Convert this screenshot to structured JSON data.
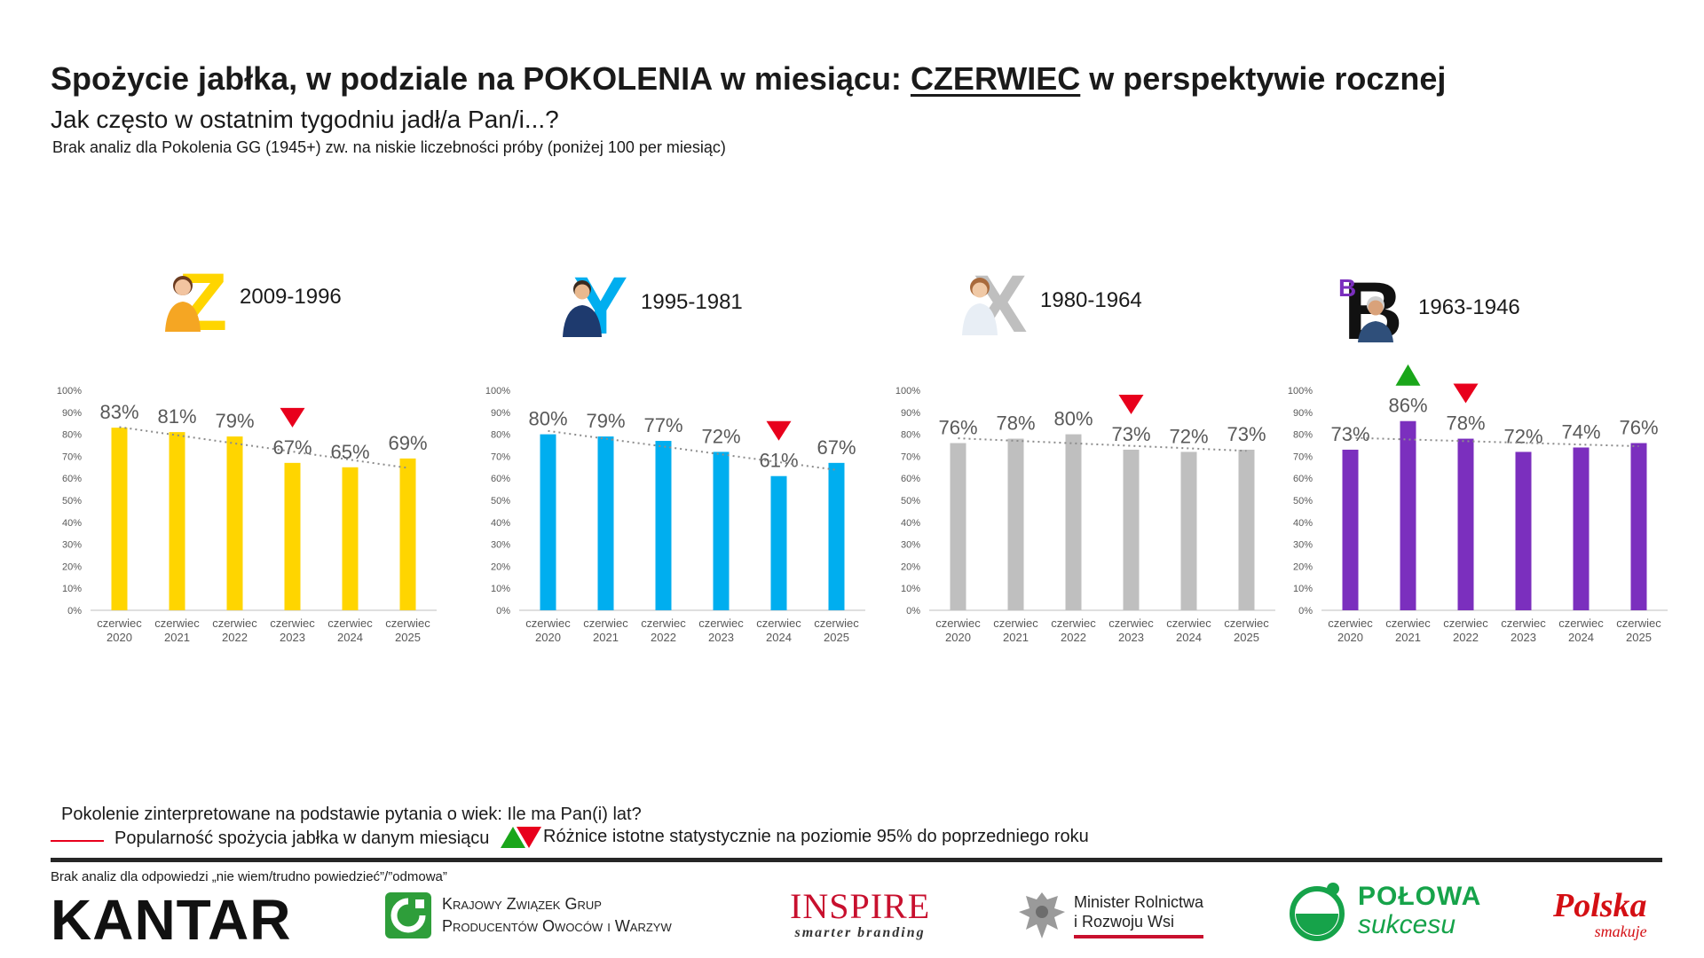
{
  "title": {
    "part1": "Spożycie jabłka, w podziale na POKOLENIA w miesiącu: ",
    "highlight": "CZERWIEC",
    "part2": " w perspektywie rocznej"
  },
  "subtitle": "Jak często w ostatnim tygodniu jadł/a Pan/i...?",
  "note_top": "Brak analiz dla Pokolenia GG (1945+) zw. na niskie liczebności próby (poniżej 100 per miesiąc)",
  "generations": [
    {
      "letter": "Z",
      "label": "2009-1996",
      "letter_color": "#FFD500"
    },
    {
      "letter": "Y",
      "label": "1995-1981",
      "letter_color": "#00AEEF"
    },
    {
      "letter": "X",
      "label": "1980-1964",
      "letter_color": "#BFBFBF"
    },
    {
      "letter": "B",
      "label": "1963-1946",
      "letter_color": "#7B2FBE"
    }
  ],
  "chart_data": [
    {
      "type": "bar",
      "categories": [
        [
          "czerwiec",
          "2020"
        ],
        [
          "czerwiec",
          "2021"
        ],
        [
          "czerwiec",
          "2022"
        ],
        [
          "czerwiec",
          "2023"
        ],
        [
          "czerwiec",
          "2024"
        ],
        [
          "czerwiec",
          "2025"
        ]
      ],
      "values": [
        83,
        81,
        79,
        67,
        65,
        69
      ],
      "labels": [
        "83%",
        "81%",
        "79%",
        "67%",
        "65%",
        "69%"
      ],
      "yticks": [
        "0%",
        "10%",
        "20%",
        "30%",
        "40%",
        "50%",
        "60%",
        "70%",
        "80%",
        "90%",
        "100%"
      ],
      "ylim": [
        0,
        100
      ],
      "color": "#FFD500",
      "trendline": true,
      "significance": [
        null,
        null,
        null,
        "down",
        null,
        null
      ]
    },
    {
      "type": "bar",
      "categories": [
        [
          "czerwiec",
          "2020"
        ],
        [
          "czerwiec",
          "2021"
        ],
        [
          "czerwiec",
          "2022"
        ],
        [
          "czerwiec",
          "2023"
        ],
        [
          "czerwiec",
          "2024"
        ],
        [
          "czerwiec",
          "2025"
        ]
      ],
      "values": [
        80,
        79,
        77,
        72,
        61,
        67
      ],
      "labels": [
        "80%",
        "79%",
        "77%",
        "72%",
        "61%",
        "67%"
      ],
      "yticks": [
        "0%",
        "10%",
        "20%",
        "30%",
        "40%",
        "50%",
        "60%",
        "70%",
        "80%",
        "90%",
        "100%"
      ],
      "ylim": [
        0,
        100
      ],
      "color": "#00AEEF",
      "trendline": true,
      "significance": [
        null,
        null,
        null,
        null,
        "down",
        null
      ]
    },
    {
      "type": "bar",
      "categories": [
        [
          "czerwiec",
          "2020"
        ],
        [
          "czerwiec",
          "2021"
        ],
        [
          "czerwiec",
          "2022"
        ],
        [
          "czerwiec",
          "2023"
        ],
        [
          "czerwiec",
          "2024"
        ],
        [
          "czerwiec",
          "2025"
        ]
      ],
      "values": [
        76,
        78,
        80,
        73,
        72,
        73
      ],
      "labels": [
        "76%",
        "78%",
        "80%",
        "73%",
        "72%",
        "73%"
      ],
      "yticks": [
        "0%",
        "10%",
        "20%",
        "30%",
        "40%",
        "50%",
        "60%",
        "70%",
        "80%",
        "90%",
        "100%"
      ],
      "ylim": [
        0,
        100
      ],
      "color": "#BFBFBF",
      "trendline": true,
      "significance": [
        null,
        null,
        null,
        "down",
        null,
        null
      ]
    },
    {
      "type": "bar",
      "categories": [
        [
          "czerwiec",
          "2020"
        ],
        [
          "czerwiec",
          "2021"
        ],
        [
          "czerwiec",
          "2022"
        ],
        [
          "czerwiec",
          "2023"
        ],
        [
          "czerwiec",
          "2024"
        ],
        [
          "czerwiec",
          "2025"
        ]
      ],
      "values": [
        73,
        86,
        78,
        72,
        74,
        76
      ],
      "labels": [
        "73%",
        "86%",
        "78%",
        "72%",
        "74%",
        "76%"
      ],
      "yticks": [
        "0%",
        "10%",
        "20%",
        "30%",
        "40%",
        "50%",
        "60%",
        "70%",
        "80%",
        "90%",
        "100%"
      ],
      "ylim": [
        0,
        100
      ],
      "color": "#7B2FBE",
      "trendline": true,
      "significance": [
        null,
        "up",
        "down",
        null,
        null,
        null
      ]
    }
  ],
  "legend": {
    "generation_note": "Pokolenie zinterpretowane na podstawie pytania o wiek: Ile ma Pan(i) lat?",
    "line_label": "Popularność spożycia jabłka w danym miesiącu",
    "significance_label": "Różnice istotne statystycznie na poziomie 95% do poprzedniego roku",
    "line_color": "#E8001C",
    "up_color": "#1AA61A",
    "down_color": "#E8001C"
  },
  "note_bottom": "Brak analiz dla odpowiedzi „nie wiem/trudno powiedzieć”/”odmowa”",
  "logos": {
    "kantar": "KANTAR",
    "kzg_line1": "Krajowy Związek Grup",
    "kzg_line2": "Producentów Owoców i Warzyw",
    "inspire": "INSPIRE",
    "inspire_tag": "smarter branding",
    "minister_line1": "Minister Rolnictwa",
    "minister_line2": "i Rozwoju Wsi",
    "polowa_line1": "POŁOWA",
    "polowa_line2": "sukcesu",
    "polska_line1": "Polska",
    "polska_line2": "smakuje"
  }
}
